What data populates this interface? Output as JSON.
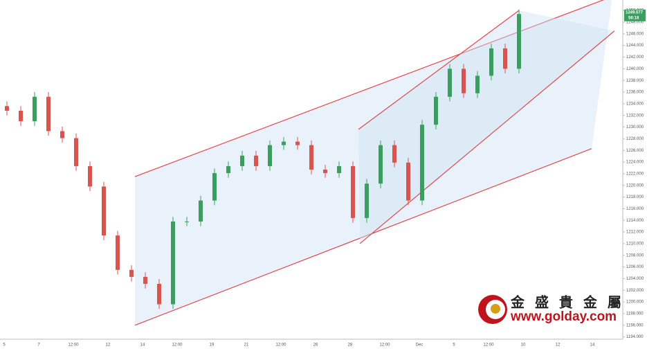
{
  "chart_data": {
    "type": "candlestick",
    "ylim": [
      1193.6,
      1251.8
    ],
    "yticks": [
      {
        "value": 1194,
        "label": "1194.000"
      },
      {
        "value": 1196,
        "label": "1196.000"
      },
      {
        "value": 1198,
        "label": "1198.000"
      },
      {
        "value": 1200,
        "label": "1200.000"
      },
      {
        "value": 1202,
        "label": "1202.000"
      },
      {
        "value": 1204,
        "label": "1204.000"
      },
      {
        "value": 1206,
        "label": "1206.000"
      },
      {
        "value": 1208,
        "label": "1208.000"
      },
      {
        "value": 1210,
        "label": "1210.000"
      },
      {
        "value": 1212,
        "label": "1212.000"
      },
      {
        "value": 1214,
        "label": "1214.000"
      },
      {
        "value": 1216,
        "label": "1216.000"
      },
      {
        "value": 1218,
        "label": "1218.000"
      },
      {
        "value": 1220,
        "label": "1220.000"
      },
      {
        "value": 1222,
        "label": "1222.000"
      },
      {
        "value": 1224,
        "label": "1224.000"
      },
      {
        "value": 1226,
        "label": "1226.000"
      },
      {
        "value": 1228,
        "label": "1228.000"
      },
      {
        "value": 1230,
        "label": "1230.000"
      },
      {
        "value": 1232,
        "label": "1232.000"
      },
      {
        "value": 1234,
        "label": "1234.000"
      },
      {
        "value": 1236,
        "label": "1236.000"
      },
      {
        "value": 1238,
        "label": "1238.000"
      },
      {
        "value": 1240,
        "label": "1240.000"
      },
      {
        "value": 1242,
        "label": "1242.000"
      },
      {
        "value": 1244,
        "label": "1244.000"
      },
      {
        "value": 1246,
        "label": "1246.000"
      },
      {
        "value": 1248,
        "label": "1248.000"
      },
      {
        "value": 1250,
        "label": "1250.000"
      }
    ],
    "xtick_labels": [
      "5",
      "7",
      "12:00",
      "12",
      "14",
      "12:00",
      "19",
      "21",
      "12:00",
      "26",
      "28",
      "12:00",
      "Dec",
      "5",
      "12:00",
      "10",
      "12",
      "14"
    ],
    "up_color": "#3a9f5e",
    "down_color": "#d9534f",
    "series": [
      {
        "open": [
          1233.6,
          1232.8,
          1231.0,
          1235.2,
          1229.3,
          1228.1,
          1223.3,
          1219.8,
          1211.4,
          1205.5,
          1204.3,
          1203.1,
          1199.6,
          1213.8,
          1213.8,
          1217.4,
          1222.1,
          1223.3,
          1225.1,
          1223.3,
          1226.9,
          1227.5,
          1226.9,
          1222.7,
          1222.1,
          1223.3,
          1214.4,
          1220.3,
          1226.9,
          1223.9,
          1217.4,
          1230.4,
          1235.2,
          1240.0,
          1235.8,
          1238.8,
          1243.5,
          1240.0
        ],
        "high": [
          1234.4,
          1233.6,
          1236.0,
          1236.0,
          1230.1,
          1228.9,
          1224.1,
          1220.6,
          1212.2,
          1206.3,
          1205.1,
          1203.9,
          1214.6,
          1214.6,
          1218.2,
          1222.9,
          1224.1,
          1225.9,
          1225.9,
          1227.7,
          1228.3,
          1228.3,
          1227.7,
          1223.5,
          1224.1,
          1224.1,
          1221.1,
          1227.7,
          1227.7,
          1224.7,
          1231.2,
          1236.0,
          1240.8,
          1240.8,
          1239.6,
          1244.3,
          1244.3,
          1250.2
        ],
        "low": [
          1232.0,
          1230.2,
          1230.2,
          1228.5,
          1227.3,
          1222.5,
          1219.0,
          1210.6,
          1204.7,
          1203.5,
          1202.3,
          1198.8,
          1198.8,
          1213.0,
          1213.0,
          1216.6,
          1221.3,
          1222.5,
          1222.5,
          1222.5,
          1226.1,
          1226.1,
          1221.9,
          1221.3,
          1221.3,
          1213.6,
          1213.6,
          1219.5,
          1223.1,
          1216.6,
          1216.6,
          1229.6,
          1234.4,
          1235.0,
          1235.0,
          1238.0,
          1239.2,
          1239.2
        ],
        "close": [
          1232.8,
          1231.0,
          1235.2,
          1229.3,
          1228.1,
          1223.3,
          1219.8,
          1211.4,
          1205.5,
          1204.3,
          1203.1,
          1199.6,
          1213.8,
          1213.8,
          1217.4,
          1222.1,
          1223.3,
          1225.1,
          1223.3,
          1226.9,
          1227.5,
          1226.9,
          1222.7,
          1222.1,
          1223.3,
          1214.4,
          1220.3,
          1226.9,
          1223.9,
          1217.4,
          1230.4,
          1235.2,
          1240.0,
          1235.8,
          1238.8,
          1243.5,
          1240.0,
          1249.4
        ]
      }
    ],
    "channels": [
      {
        "upper": {
          "x": [
            9.25,
            43.75
          ],
          "y": [
            1221.5,
            1252.4
          ]
        },
        "lower": {
          "x": [
            9.25,
            42.25
          ],
          "y": [
            1196.0,
            1226.3
          ]
        }
      },
      {
        "upper": {
          "x": [
            25.4,
            37
          ],
          "y": [
            1229.6,
            1250.0
          ]
        },
        "lower": {
          "x": [
            25.5,
            43.9
          ],
          "y": [
            1210.0,
            1246.5
          ]
        }
      }
    ],
    "last_price": {
      "value": 1249.577,
      "label": "1249.577",
      "countdown": "56:18"
    }
  },
  "watermark": {
    "name": "金 盛 貴 金 屬",
    "url": "www.golday.com"
  }
}
